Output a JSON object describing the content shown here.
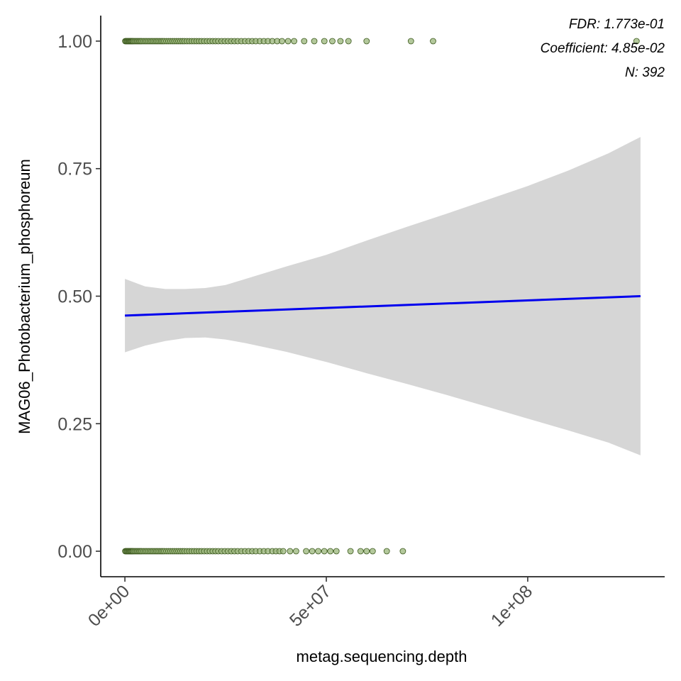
{
  "chart_data": {
    "type": "scatter",
    "title": "",
    "xlabel": "metag.sequencing.depth",
    "ylabel": "MAG06_Photobacterium_phosphoreum",
    "xlim": [
      -6000000,
      134000000
    ],
    "ylim": [
      -0.05,
      1.05
    ],
    "x_ticks": [
      {
        "value": 0,
        "label": "0e+00"
      },
      {
        "value": 50000000,
        "label": "5e+07"
      },
      {
        "value": 100000000,
        "label": "1e+08"
      }
    ],
    "y_ticks": [
      {
        "value": 0,
        "label": "0.00"
      },
      {
        "value": 0.25,
        "label": "0.25"
      },
      {
        "value": 0.5,
        "label": "0.50"
      },
      {
        "value": 0.75,
        "label": "0.75"
      },
      {
        "value": 1,
        "label": "1.00"
      }
    ],
    "grid": false,
    "annotations": [
      "FDR: 1.773e-01",
      "Coefficient: 4.85e-02",
      "N: 392"
    ],
    "colors": {
      "points_fill": "#9ab57a",
      "points_stroke": "#3d5a1f",
      "fit_line": "#0000ee",
      "ribbon": "#d6d6d6",
      "axis": "#000000"
    },
    "points": {
      "y1_x_millions": [
        0.1,
        0.3,
        0.5,
        0.7,
        0.9,
        1.1,
        1.3,
        1.5,
        1.7,
        1.9,
        2.1,
        2.4,
        2.7,
        3.0,
        3.3,
        3.6,
        3.9,
        4.2,
        4.6,
        5.0,
        5.4,
        5.8,
        6.2,
        6.6,
        7.0,
        7.4,
        7.8,
        8.2,
        8.6,
        9.0,
        9.4,
        9.8,
        10.3,
        10.8,
        11.3,
        11.8,
        12.3,
        12.8,
        13.3,
        13.8,
        14.3,
        14.8,
        15.4,
        16.0,
        16.6,
        17.2,
        17.8,
        18.4,
        19.0,
        19.7,
        20.4,
        21.1,
        21.8,
        22.5,
        23.2,
        24.0,
        24.8,
        25.6,
        26.4,
        27.2,
        28.0,
        28.9,
        29.8,
        30.7,
        31.6,
        32.5,
        33.5,
        34.5,
        35.5,
        36.6,
        37.8,
        39.0,
        40.5,
        42.0,
        44.5,
        47.0,
        49.5,
        51.5,
        53.5,
        55.5,
        60.0,
        71.0,
        76.5,
        127.0
      ],
      "y0_x_millions": [
        0.1,
        0.3,
        0.5,
        0.7,
        0.9,
        1.1,
        1.3,
        1.5,
        1.7,
        1.9,
        2.1,
        2.4,
        2.7,
        3.0,
        3.3,
        3.6,
        3.9,
        4.2,
        4.6,
        5.0,
        5.4,
        5.8,
        6.2,
        6.6,
        7.0,
        7.4,
        7.8,
        8.2,
        8.6,
        9.0,
        9.4,
        9.8,
        10.3,
        10.8,
        11.3,
        11.8,
        12.3,
        12.8,
        13.3,
        13.8,
        14.3,
        14.8,
        15.4,
        16.0,
        16.6,
        17.2,
        17.8,
        18.4,
        19.0,
        19.7,
        20.4,
        21.1,
        21.8,
        22.5,
        23.2,
        24.0,
        24.8,
        25.6,
        26.4,
        27.2,
        28.0,
        28.9,
        29.8,
        30.7,
        31.6,
        32.5,
        33.5,
        34.5,
        35.5,
        36.6,
        37.5,
        38.4,
        39.3,
        41.0,
        42.5,
        45.0,
        46.5,
        48.0,
        49.5,
        51.0,
        52.5,
        56.0,
        58.5,
        60.0,
        61.5,
        65.0,
        69.0
      ],
      "y1_count_note": "",
      "values_y": [
        0,
        1
      ]
    },
    "fit": {
      "x_millions": [
        0,
        128
      ],
      "y": [
        0.462,
        0.5
      ]
    },
    "ribbon": {
      "x_millions": [
        0,
        5,
        10,
        15,
        20,
        25,
        30,
        40,
        50,
        60,
        70,
        80,
        90,
        100,
        110,
        120,
        128
      ],
      "lower": [
        0.39,
        0.403,
        0.412,
        0.418,
        0.419,
        0.415,
        0.408,
        0.391,
        0.371,
        0.349,
        0.328,
        0.306,
        0.283,
        0.26,
        0.237,
        0.213,
        0.188
      ],
      "upper": [
        0.534,
        0.519,
        0.514,
        0.514,
        0.516,
        0.522,
        0.534,
        0.558,
        0.581,
        0.609,
        0.636,
        0.662,
        0.689,
        0.716,
        0.746,
        0.78,
        0.812
      ]
    }
  }
}
